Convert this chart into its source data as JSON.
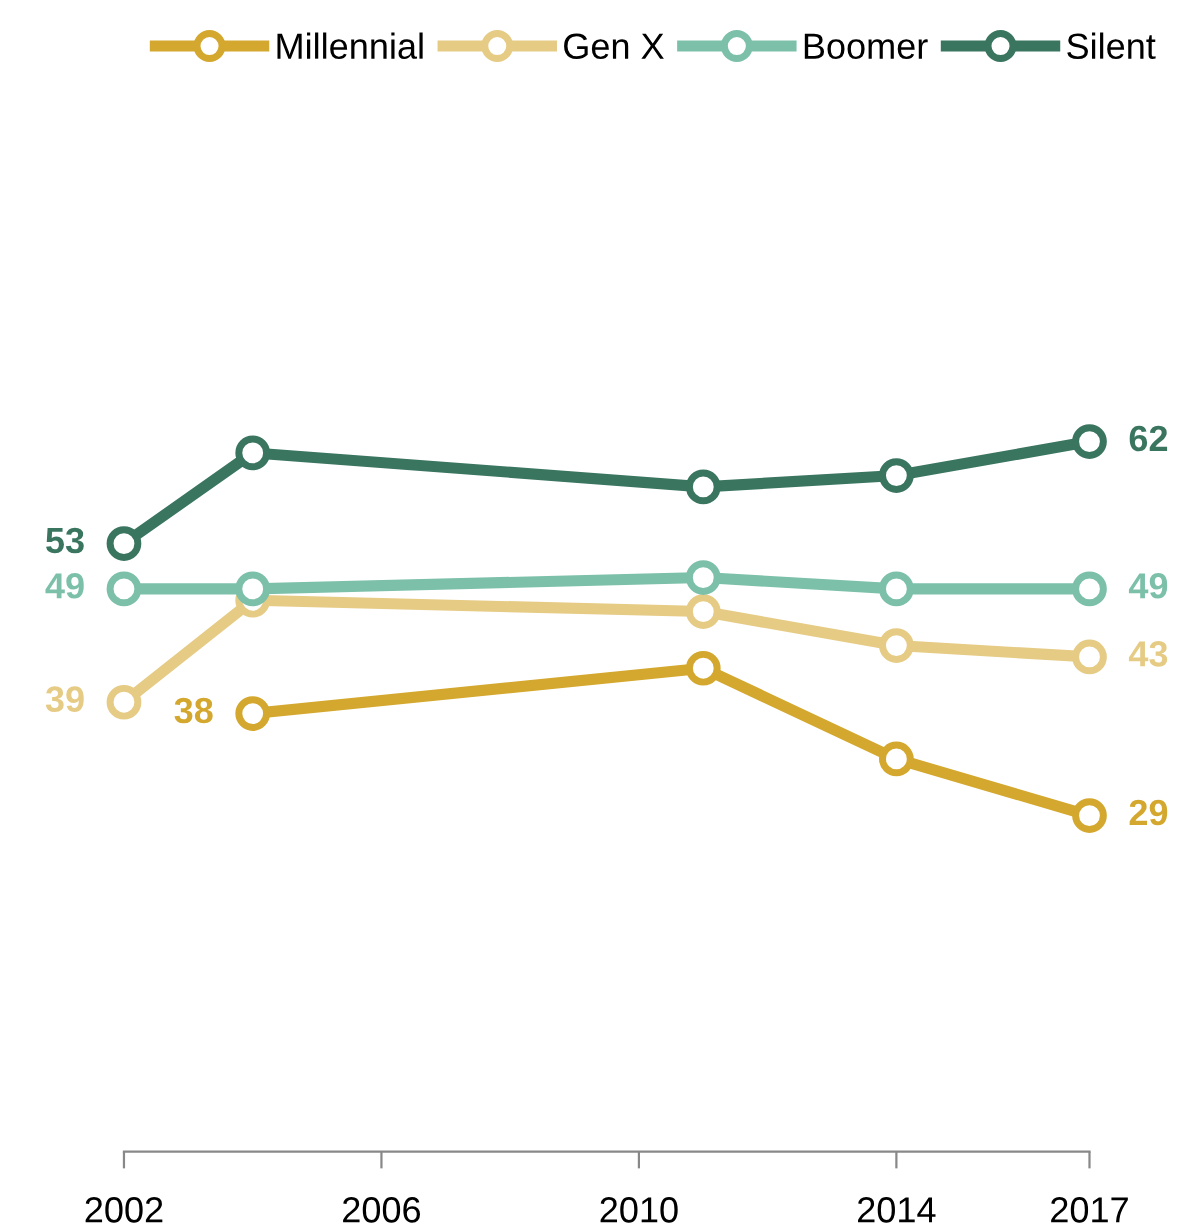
{
  "chart_data": {
    "type": "line",
    "x": [
      2002,
      2004,
      2011,
      2014,
      2017
    ],
    "xlim": [
      2002,
      2017
    ],
    "xticks": [
      2002,
      2006,
      2010,
      2014,
      2017
    ],
    "tick_labels": "x",
    "grid": false,
    "legend": "top",
    "marker": "circle",
    "line_style": "solid",
    "series": [
      {
        "name": "Millennial",
        "color": "#d4a82e",
        "x": [
          2004,
          2011,
          2014,
          2017
        ],
        "values": [
          38,
          42,
          34,
          29
        ],
        "value_labels": [
          "38",
          null,
          null,
          "29"
        ]
      },
      {
        "name": "Gen X",
        "color": "#e6cb85",
        "values": [
          39,
          48,
          47,
          44,
          43
        ],
        "value_labels": [
          "39",
          null,
          null,
          null,
          "43"
        ]
      },
      {
        "name": "Boomer",
        "color": "#7cc0aa",
        "values": [
          49,
          49,
          50,
          49,
          49
        ],
        "value_labels": [
          "49",
          null,
          null,
          null,
          "49"
        ]
      },
      {
        "name": "Silent",
        "color": "#3a7560",
        "values": [
          53,
          61,
          58,
          59,
          62
        ],
        "value_labels": [
          "53",
          null,
          null,
          null,
          "62"
        ]
      }
    ]
  }
}
